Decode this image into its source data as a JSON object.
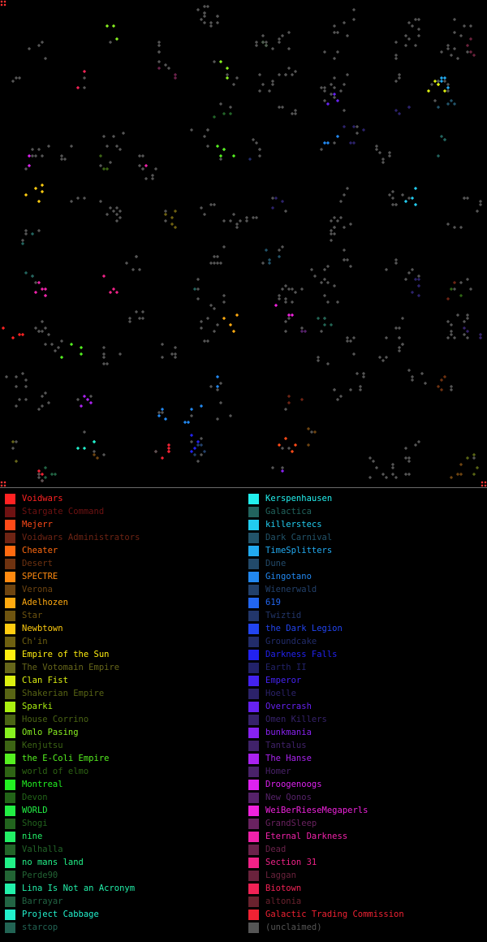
{
  "map": {
    "background": "#000000",
    "unclaimed_color": "#555555"
  },
  "legend": {
    "left": [
      {
        "name": "Voidwars",
        "color": "#ff2222"
      },
      {
        "name": "Stargate Command",
        "color": "#6e1212"
      },
      {
        "name": "Mejerr",
        "color": "#ff4a18"
      },
      {
        "name": "Voidwars Administrators",
        "color": "#6e2414"
      },
      {
        "name": "Cheater",
        "color": "#ff6a10"
      },
      {
        "name": "Desert",
        "color": "#6e3210"
      },
      {
        "name": "SPECTRE",
        "color": "#ff8a10"
      },
      {
        "name": "Verona",
        "color": "#6e4410"
      },
      {
        "name": "Adelhozen",
        "color": "#ffaa10"
      },
      {
        "name": "Star",
        "color": "#6e5410"
      },
      {
        "name": "Newbtown",
        "color": "#ffcc10"
      },
      {
        "name": "Ch'in",
        "color": "#6e6010"
      },
      {
        "name": "Empire of the Sun",
        "color": "#ffee10"
      },
      {
        "name": "The Votomain Empire",
        "color": "#66661a"
      },
      {
        "name": "Clan Fist",
        "color": "#ddf010"
      },
      {
        "name": "Shakerian Empire",
        "color": "#586414"
      },
      {
        "name": "Sparki",
        "color": "#aaf010"
      },
      {
        "name": "House Corrino",
        "color": "#4a6414"
      },
      {
        "name": "Omlo Pasing",
        "color": "#88f020"
      },
      {
        "name": "Kenjutsu",
        "color": "#3c6414"
      },
      {
        "name": "the E-Coli Empire",
        "color": "#55f020"
      },
      {
        "name": "world of elmo",
        "color": "#2e6414"
      },
      {
        "name": "Montreal",
        "color": "#22f022"
      },
      {
        "name": "Devon",
        "color": "#226418"
      },
      {
        "name": "WORLD",
        "color": "#22f044"
      },
      {
        "name": "Shogi",
        "color": "#22641e"
      },
      {
        "name": "nine",
        "color": "#22f066"
      },
      {
        "name": "Valhalla",
        "color": "#226428"
      },
      {
        "name": "no mans land",
        "color": "#22f088"
      },
      {
        "name": "Perde90",
        "color": "#226434"
      },
      {
        "name": "Lina Is Not an Acronym",
        "color": "#22f0aa"
      },
      {
        "name": "Barrayar",
        "color": "#226444"
      },
      {
        "name": "Project Cabbage",
        "color": "#22f0cc"
      },
      {
        "name": "starcop",
        "color": "#226454"
      }
    ],
    "right": [
      {
        "name": "Kerspenhausen",
        "color": "#22f0ee"
      },
      {
        "name": "Galactica",
        "color": "#22645e"
      },
      {
        "name": "killerstecs",
        "color": "#22ccf0"
      },
      {
        "name": "Dark Carnival",
        "color": "#22546a"
      },
      {
        "name": "TimeSplitters",
        "color": "#22aaf0"
      },
      {
        "name": "Dune",
        "color": "#224a6a"
      },
      {
        "name": "Gingotano",
        "color": "#2288f0"
      },
      {
        "name": "Wienerwald",
        "color": "#22406a"
      },
      {
        "name": "619",
        "color": "#2266f0"
      },
      {
        "name": "Twiztid",
        "color": "#22366a"
      },
      {
        "name": "the Dark Legion",
        "color": "#2244f0"
      },
      {
        "name": "Groundcake",
        "color": "#222c6a"
      },
      {
        "name": "Darkness Falls",
        "color": "#2222f0"
      },
      {
        "name": "Earth II",
        "color": "#22226a"
      },
      {
        "name": "Emperor",
        "color": "#4422f0"
      },
      {
        "name": "Hoelle",
        "color": "#2c226a"
      },
      {
        "name": "Overcrash",
        "color": "#6622f0"
      },
      {
        "name": "Omen Killers",
        "color": "#36226a"
      },
      {
        "name": "bunkmania",
        "color": "#8822f0"
      },
      {
        "name": "Tantalus",
        "color": "#40226a"
      },
      {
        "name": "The Hanse",
        "color": "#aa22f0"
      },
      {
        "name": "Homer",
        "color": "#4a226a"
      },
      {
        "name": "Droogenoogs",
        "color": "#dd22f0"
      },
      {
        "name": "New Qonos",
        "color": "#56226a"
      },
      {
        "name": "WeiBerRieseMegaperls",
        "color": "#f022dd"
      },
      {
        "name": "GrandSleep",
        "color": "#6a2260"
      },
      {
        "name": "Eternal Darkness",
        "color": "#f022aa"
      },
      {
        "name": "Dead",
        "color": "#6a224a"
      },
      {
        "name": "Section 31",
        "color": "#f02288"
      },
      {
        "name": "Laggan",
        "color": "#6a223c"
      },
      {
        "name": "Biotown",
        "color": "#f02255"
      },
      {
        "name": "altonia",
        "color": "#6a222e"
      },
      {
        "name": "Galactic Trading Commission",
        "color": "#f02233"
      },
      {
        "name": "(unclaimed)",
        "color": "#555555"
      }
    ]
  }
}
